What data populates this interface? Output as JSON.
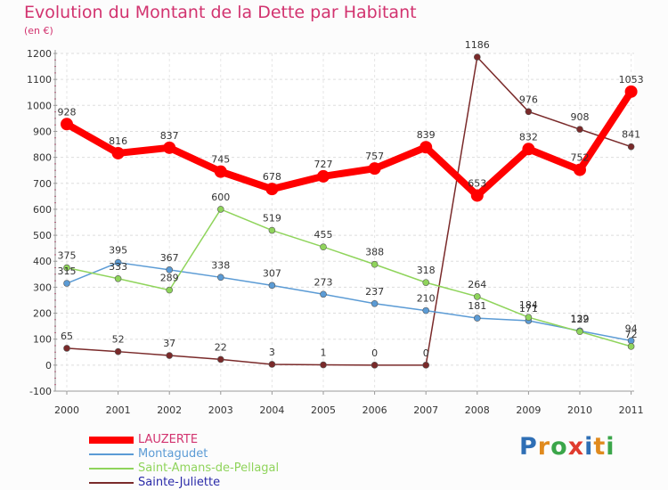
{
  "header": {
    "title": "Evolution du Montant de la Dette par Habitant",
    "unit": "(en €)"
  },
  "brand": {
    "letters": [
      "P",
      "r",
      "o",
      "x",
      "i",
      "t",
      "i"
    ],
    "colors": [
      "#2f6fb5",
      "#e08a1e",
      "#3ba64a",
      "#e03b2e",
      "#2f6fb5",
      "#e08a1e",
      "#3ba64a"
    ]
  },
  "chart_data": {
    "type": "line",
    "title": "Evolution du Montant de la Dette par Habitant",
    "ylabel": "(en €)",
    "xlabel": "",
    "x": [
      "2000",
      "2001",
      "2002",
      "2003",
      "2004",
      "2005",
      "2006",
      "2007",
      "2008",
      "2009",
      "2010",
      "2011"
    ],
    "ylim": [
      -100,
      1200
    ],
    "yticks": [
      -100,
      0,
      100,
      200,
      300,
      400,
      500,
      600,
      700,
      800,
      900,
      1000,
      1100,
      1200
    ],
    "grid": "horizontal",
    "legend_position": "bottom-left",
    "series": [
      {
        "name": "LAUZERTE",
        "color": "#ff0000",
        "values": [
          928,
          816,
          837,
          745,
          678,
          727,
          757,
          839,
          653,
          832,
          752,
          1053
        ],
        "labels": [
          "928",
          "816",
          "837",
          "745",
          "678",
          "727",
          "757",
          "839",
          "653",
          "832",
          "752",
          "1053"
        ]
      },
      {
        "name": "Montagudet",
        "color": "#5b9bd5",
        "values": [
          315,
          395,
          367,
          338,
          307,
          273,
          237,
          210,
          181,
          171,
          132,
          94
        ],
        "labels": [
          "315",
          "395",
          "367",
          "338",
          "307",
          "273",
          "237",
          "210",
          "181",
          "171",
          "132",
          "94"
        ]
      },
      {
        "name": "Saint-Amans-de-Pellagal",
        "color": "#8fd45b",
        "values": [
          375,
          333,
          289,
          600,
          519,
          455,
          388,
          318,
          264,
          184,
          129,
          72
        ],
        "labels": [
          "375",
          "333",
          "289",
          "600",
          "519",
          "455",
          "388",
          "318",
          "264",
          "184",
          "129",
          "72"
        ]
      },
      {
        "name": "Sainte-Juliette",
        "color": "#7a2a2a",
        "values": [
          65,
          52,
          37,
          22,
          3,
          1,
          0,
          0,
          1186,
          976,
          908,
          841
        ],
        "labels": [
          "65",
          "52",
          "37",
          "22",
          "3",
          "1",
          "0",
          "0",
          "1186",
          "976",
          "908",
          "841"
        ]
      }
    ]
  }
}
